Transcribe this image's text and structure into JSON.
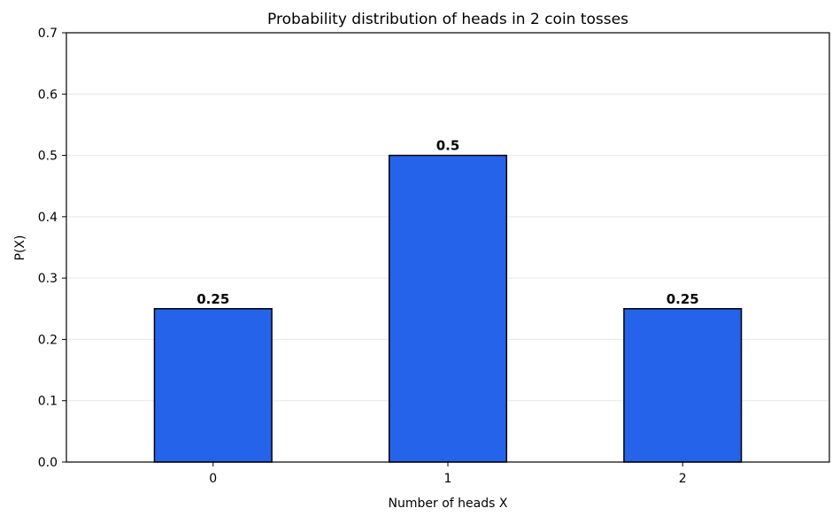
{
  "chart_data": {
    "type": "bar",
    "title": "Probability distribution of heads in 2 coin tosses",
    "xlabel": "Number of heads X",
    "ylabel": "P(X)",
    "categories": [
      "0",
      "1",
      "2"
    ],
    "values": [
      0.25,
      0.5,
      0.25
    ],
    "data_labels": [
      "0.25",
      "0.5",
      "0.25"
    ],
    "ylim": [
      0,
      0.7
    ],
    "yticks": [
      "0.0",
      "0.1",
      "0.2",
      "0.3",
      "0.4",
      "0.5",
      "0.6",
      "0.7"
    ],
    "grid": "horizontal",
    "legend": "none",
    "colors": {
      "bar_fill": "#2563eb",
      "bar_edge": "#000000",
      "grid": "#e6e6e6"
    }
  }
}
